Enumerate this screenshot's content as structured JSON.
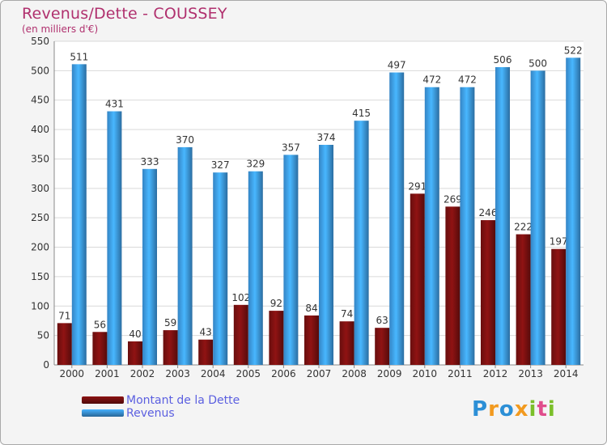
{
  "title": "Revenus/Dette - COUSSEY",
  "subtitle": "(en milliers d'€)",
  "logo": {
    "text": "Proxiti",
    "letters": [
      {
        "ch": "P",
        "color": "#2c8fd6"
      },
      {
        "ch": "r",
        "color": "#f29a1f"
      },
      {
        "ch": "o",
        "color": "#2c8fd6"
      },
      {
        "ch": "x",
        "color": "#f29a1f"
      },
      {
        "ch": "i",
        "color": "#7bbf2a"
      },
      {
        "ch": "t",
        "color": "#e04d8c"
      },
      {
        "ch": "i",
        "color": "#7bbf2a"
      }
    ]
  },
  "legend": [
    {
      "label": "Montant de la Dette",
      "color": "#7a1010"
    },
    {
      "label": "Revenus",
      "color": "#3d9be6"
    }
  ],
  "chart_data": {
    "type": "bar",
    "title": "Revenus/Dette - COUSSEY",
    "subtitle": "(en milliers d'€)",
    "categories": [
      "2000",
      "2001",
      "2002",
      "2003",
      "2004",
      "2005",
      "2006",
      "2007",
      "2008",
      "2009",
      "2010",
      "2011",
      "2012",
      "2013",
      "2014"
    ],
    "series": [
      {
        "name": "Montant de la Dette",
        "color": "#7a1010",
        "values": [
          71,
          56,
          40,
          59,
          43,
          102,
          92,
          84,
          74,
          63,
          291,
          269,
          246,
          222,
          197
        ]
      },
      {
        "name": "Revenus",
        "color": "#3d9be6",
        "values": [
          511,
          431,
          333,
          370,
          327,
          329,
          357,
          374,
          415,
          497,
          472,
          472,
          506,
          500,
          522
        ]
      }
    ],
    "ylim": [
      0,
      550
    ],
    "yticks": [
      0,
      50,
      100,
      150,
      200,
      250,
      300,
      350,
      400,
      450,
      500,
      550
    ],
    "grid": true,
    "legend_position": "bottom-left"
  }
}
